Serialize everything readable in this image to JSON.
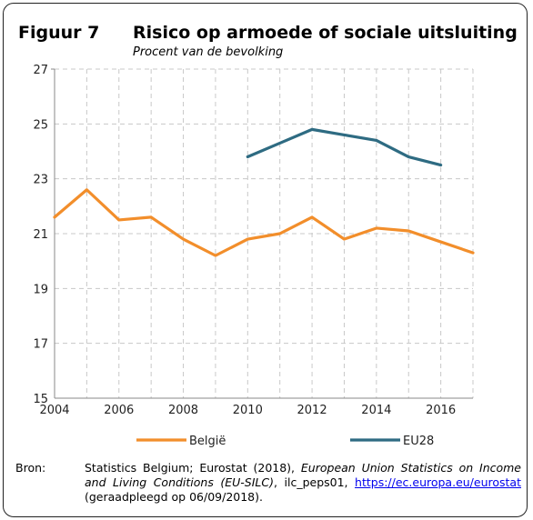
{
  "figure": {
    "label": "Figuur 7",
    "title": "Risico op armoede of sociale uitsluiting",
    "subtitle": "Procent van de bevolking"
  },
  "source": {
    "label": "Bron:",
    "text_plain": "Statistics Belgium; Eurostat (2018), ",
    "text_italic": "European Union Statistics on Income and Living Conditions (EU-SILC)",
    "text_after_italic": ", ilc_peps01, ",
    "link": "https://ec.europa.eu/eurostat",
    "text_end": " (geraadpleegd op 06/09/2018)."
  },
  "chart_data": {
    "type": "line",
    "title": "Risico op armoede of sociale uitsluiting",
    "ylabel": "Procent van de bevolking",
    "xlim": [
      2004,
      2017
    ],
    "ylim": [
      15,
      27
    ],
    "xticks": [
      "2004",
      "2006",
      "2008",
      "2010",
      "2012",
      "2014",
      "2016"
    ],
    "yticks": [
      "15",
      "17",
      "19",
      "21",
      "23",
      "25",
      "27"
    ],
    "grid": true,
    "legend_position": "bottom",
    "series": [
      {
        "name": "België",
        "color": "#F28E2B",
        "x": [
          2004,
          2005,
          2006,
          2007,
          2008,
          2009,
          2010,
          2011,
          2012,
          2013,
          2014,
          2015,
          2016,
          2017
        ],
        "y": [
          21.6,
          22.6,
          21.5,
          21.6,
          20.8,
          20.2,
          20.8,
          21.0,
          21.6,
          20.8,
          21.2,
          21.1,
          20.7,
          20.3
        ]
      },
      {
        "name": "EU28",
        "color": "#2E6B82",
        "x": [
          2010,
          2011,
          2012,
          2013,
          2014,
          2015,
          2016
        ],
        "y": [
          23.8,
          24.3,
          24.8,
          24.6,
          24.4,
          23.8,
          23.5
        ]
      }
    ]
  }
}
